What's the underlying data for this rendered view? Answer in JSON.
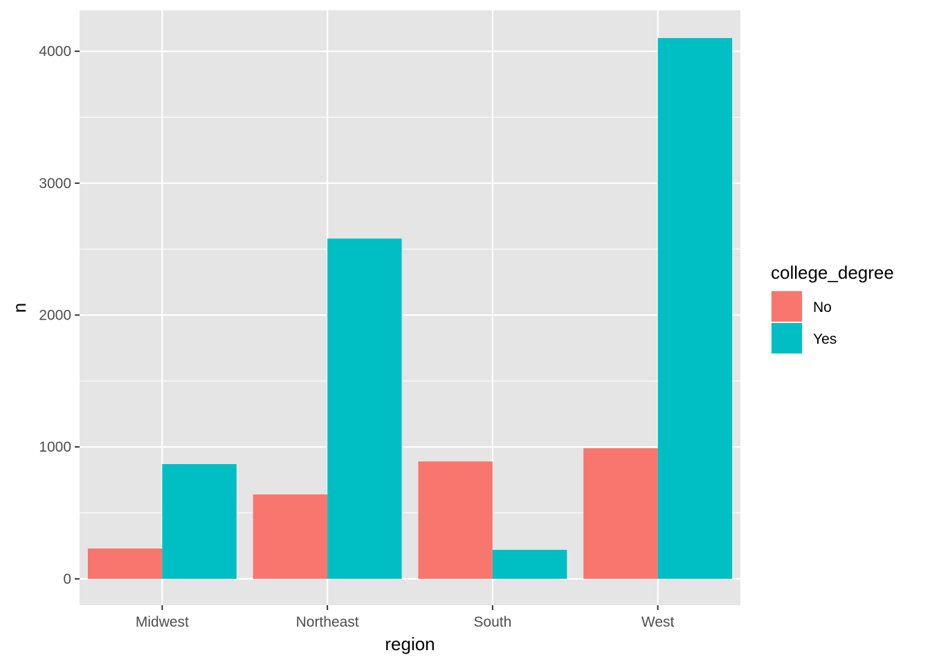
{
  "chart_data": {
    "type": "bar",
    "categories": [
      "Midwest",
      "Northeast",
      "South",
      "West"
    ],
    "series": [
      {
        "name": "No",
        "color": "#F8766D",
        "values": [
          230,
          640,
          890,
          990
        ]
      },
      {
        "name": "Yes",
        "color": "#00BFC4",
        "values": [
          870,
          2580,
          220,
          4100
        ]
      }
    ],
    "title": "",
    "xlabel": "region",
    "ylabel": "n",
    "ylim": [
      -200,
      4310
    ],
    "yticks": [
      0,
      1000,
      2000,
      3000,
      4000
    ],
    "ytick_labels": [
      "0",
      "1000",
      "2000",
      "3000",
      "4000"
    ],
    "grid": true,
    "legend": {
      "title": "college_degree",
      "placement": "right",
      "entries": [
        "No",
        "Yes"
      ]
    },
    "panel_background": "#E5E5E5"
  }
}
